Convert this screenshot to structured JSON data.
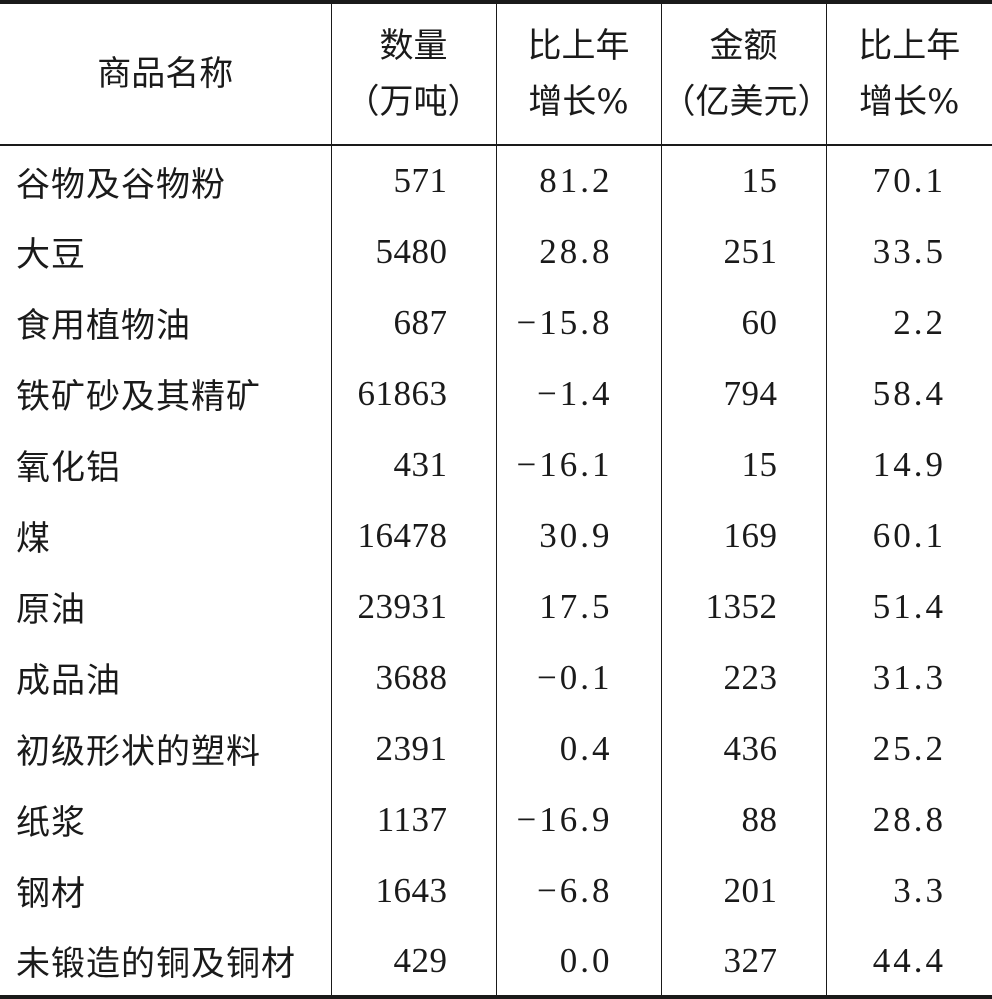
{
  "table": {
    "headers": {
      "name": "商品名称",
      "quantity": [
        "数量",
        "（万吨）"
      ],
      "quantity_growth": [
        "比上年",
        "增长%"
      ],
      "amount": [
        "金额",
        "（亿美元）"
      ],
      "amount_growth": [
        "比上年",
        "增长%"
      ]
    },
    "rows": [
      {
        "name": "谷物及谷物粉",
        "quantity": "571",
        "quantity_growth": "81.2",
        "amount": "15",
        "amount_growth": "70.1"
      },
      {
        "name": "大豆",
        "quantity": "5480",
        "quantity_growth": "28.8",
        "amount": "251",
        "amount_growth": "33.5"
      },
      {
        "name": "食用植物油",
        "quantity": "687",
        "quantity_growth": "−15.8",
        "amount": "60",
        "amount_growth": "2.2"
      },
      {
        "name": "铁矿砂及其精矿",
        "quantity": "61863",
        "quantity_growth": "−1.4",
        "amount": "794",
        "amount_growth": "58.4"
      },
      {
        "name": "氧化铝",
        "quantity": "431",
        "quantity_growth": "−16.1",
        "amount": "15",
        "amount_growth": "14.9"
      },
      {
        "name": "煤",
        "quantity": "16478",
        "quantity_growth": "30.9",
        "amount": "169",
        "amount_growth": "60.1"
      },
      {
        "name": "原油",
        "quantity": "23931",
        "quantity_growth": "17.5",
        "amount": "1352",
        "amount_growth": "51.4"
      },
      {
        "name": "成品油",
        "quantity": "3688",
        "quantity_growth": "−0.1",
        "amount": "223",
        "amount_growth": "31.3"
      },
      {
        "name": "初级形状的塑料",
        "quantity": "2391",
        "quantity_growth": "0.4",
        "amount": "436",
        "amount_growth": "25.2"
      },
      {
        "name": "纸浆",
        "quantity": "1137",
        "quantity_growth": "−16.9",
        "amount": "88",
        "amount_growth": "28.8"
      },
      {
        "name": "钢材",
        "quantity": "1643",
        "quantity_growth": "−6.8",
        "amount": "201",
        "amount_growth": "3.3"
      },
      {
        "name": "未锻造的铜及铜材",
        "quantity": "429",
        "quantity_growth": "0.0",
        "amount": "327",
        "amount_growth": "44.4"
      }
    ]
  }
}
